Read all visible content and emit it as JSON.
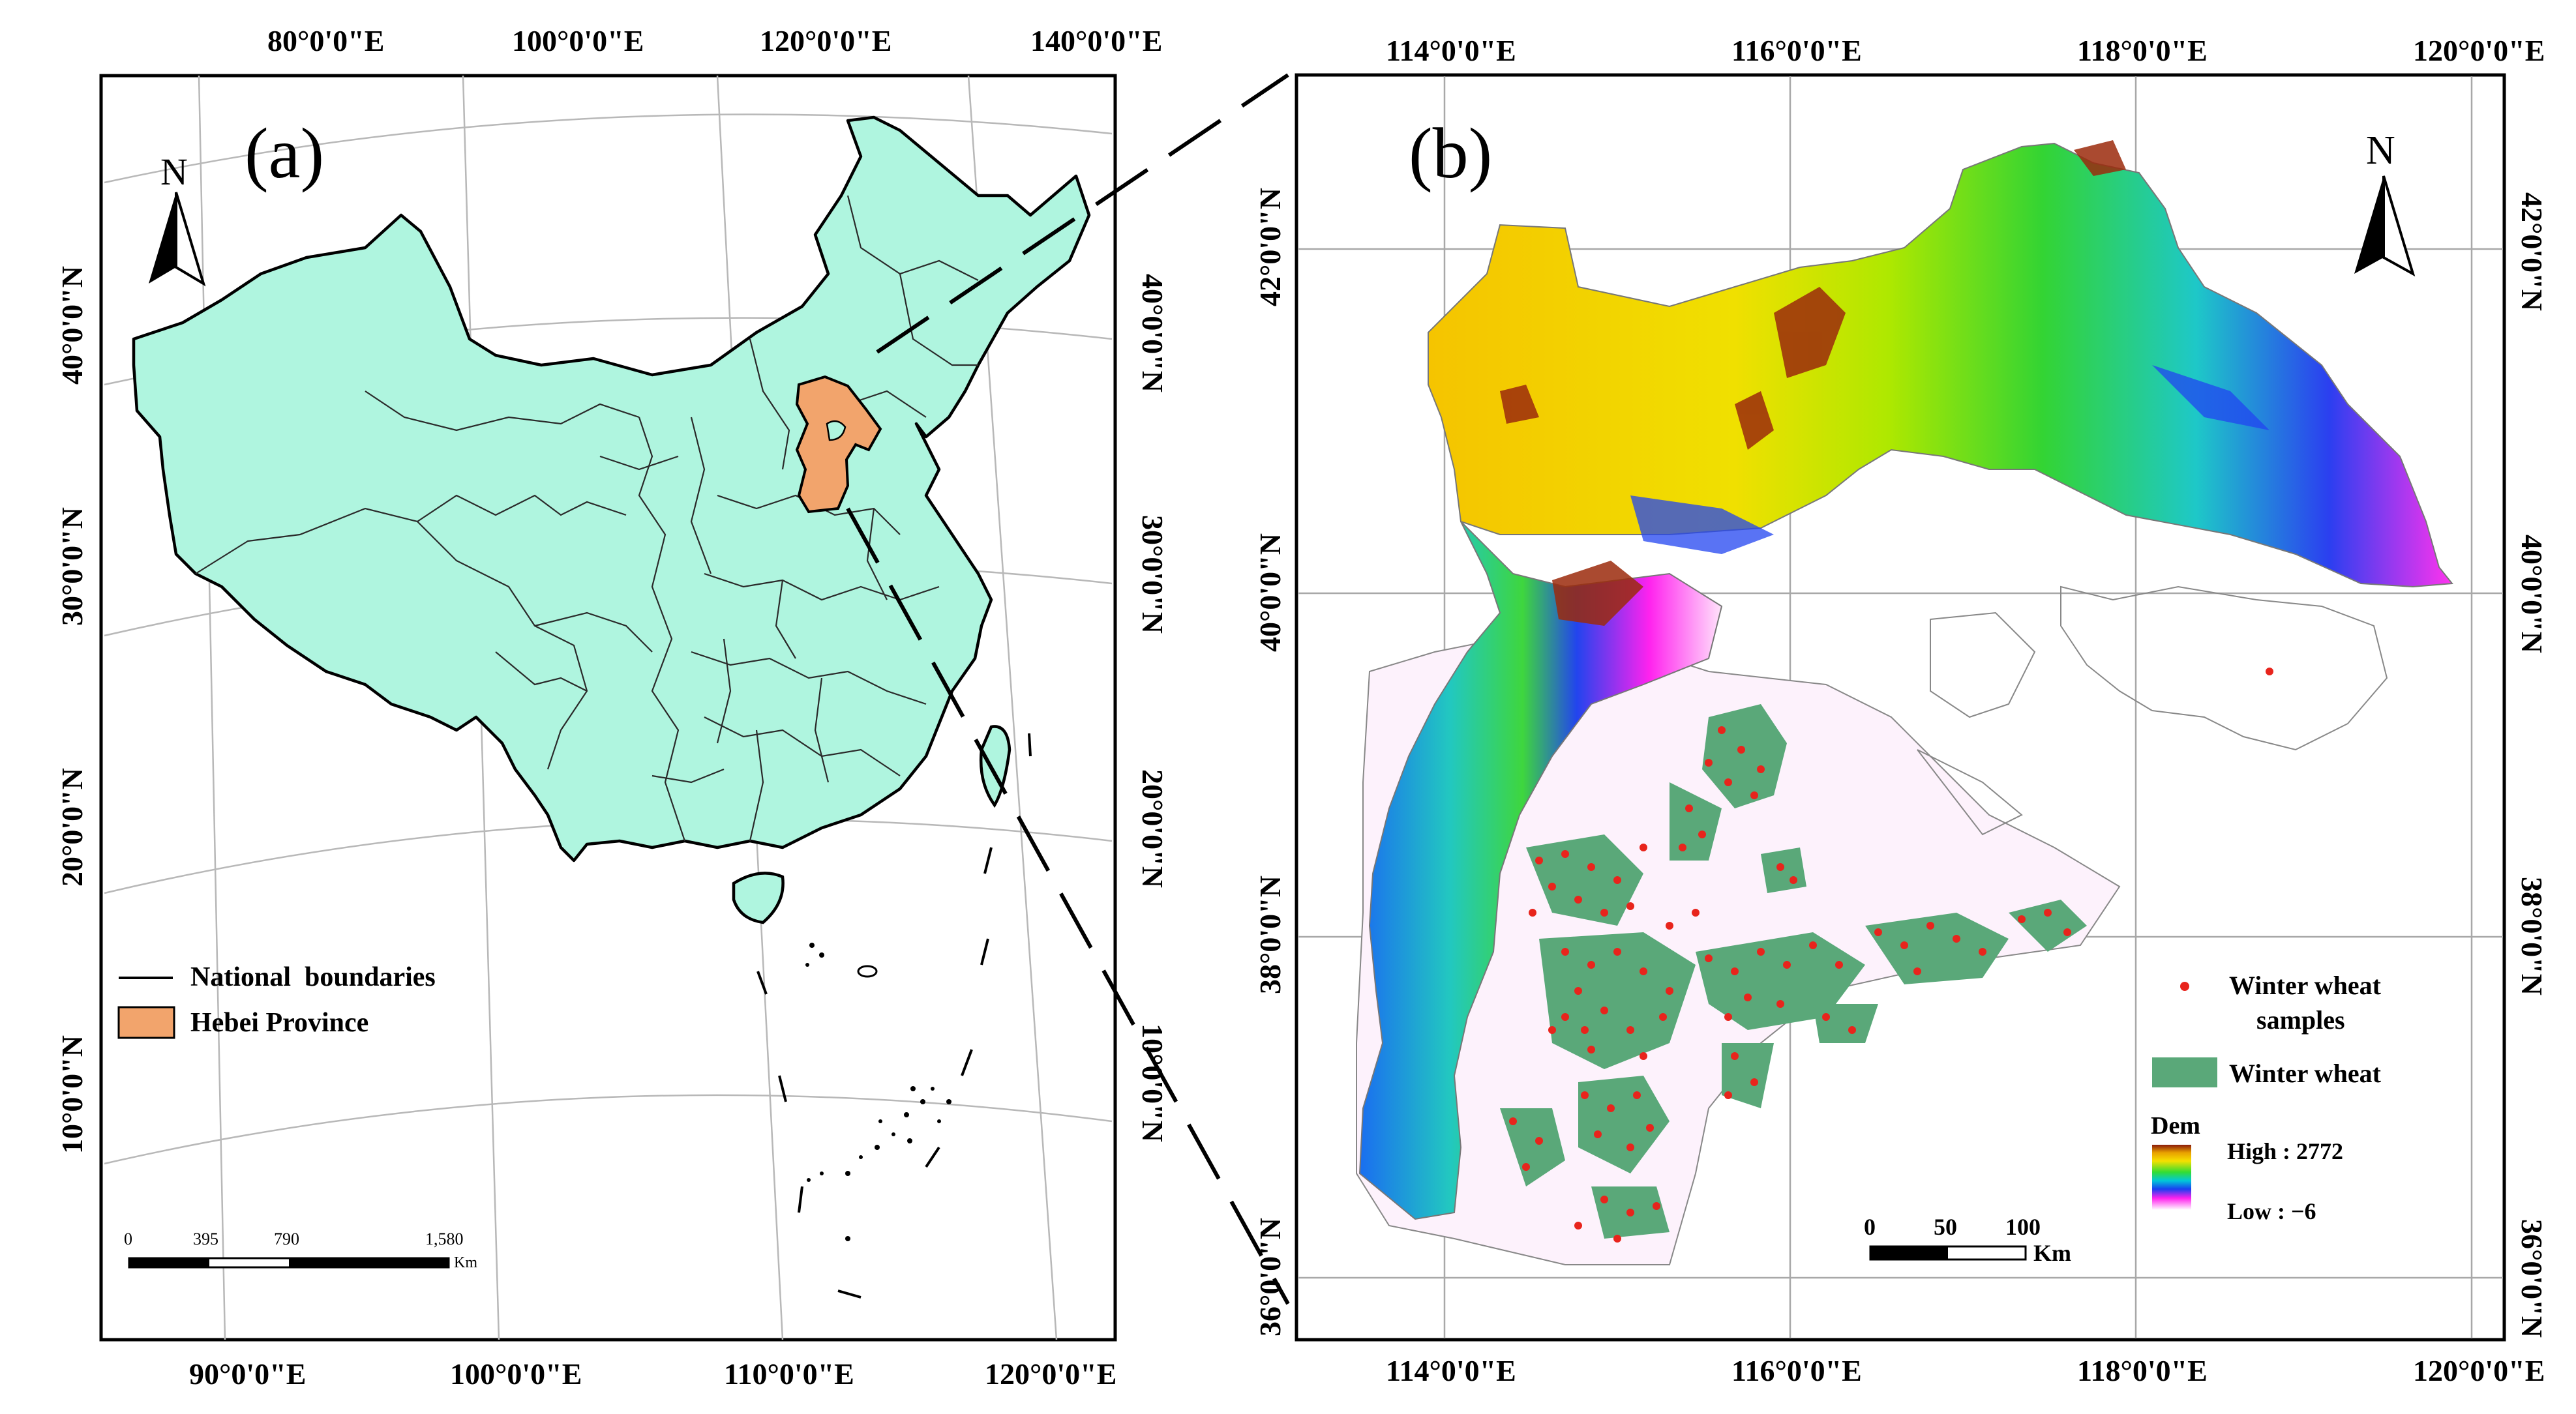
{
  "panel_a": {
    "label": "(a)",
    "north": "N",
    "top_lon": [
      "80°0'0\"E",
      "100°0'0\"E",
      "120°0'0\"E",
      "140°0'0\"E"
    ],
    "bottom_lon": [
      "90°0'0\"E",
      "100°0'0\"E",
      "110°0'0\"E",
      "120°0'0\"E"
    ],
    "left_lat": [
      "40°0'0\"N",
      "30°0'0\"N",
      "20°0'0\"N",
      "10°0'0\"N"
    ],
    "right_lat": [
      "40°0'0\"N",
      "30°0'0\"N",
      "20°0'0\"N",
      "10°0'0\"N"
    ],
    "legend": {
      "boundaries": "National  boundaries",
      "hebei": "Hebei Province"
    },
    "legend_colors": {
      "china_fill": "#aff5df",
      "hebei_fill": "#f2a46c"
    },
    "scale": {
      "ticks": [
        "0",
        "395",
        "790",
        "1,580"
      ],
      "unit": "Km"
    }
  },
  "panel_b": {
    "label": "(b)",
    "north": "N",
    "top_lon": [
      "114°0'0\"E",
      "116°0'0\"E",
      "118°0'0\"E",
      "120°0'0\"E"
    ],
    "bottom_lon": [
      "114°0'0\"E",
      "116°0'0\"E",
      "118°0'0\"E",
      "120°0'0\"E"
    ],
    "left_lat": [
      "42°0'0\"N",
      "40°0'0\"N",
      "38°0'0\"N",
      "36°0'0\"N"
    ],
    "right_lat": [
      "42°0'0\"N",
      "40°0'0\"N",
      "38°0'0\"N",
      "36°0'0\"N"
    ],
    "legend": {
      "samples_line1": "Winter wheat",
      "samples_line2": "samples",
      "wheat": "Winter wheat",
      "dem_title": "Dem",
      "dem_high": "High : 2772",
      "dem_low": "Low : −6"
    },
    "legend_colors": {
      "sample_dot": "#e8241c",
      "wheat_fill": "#5aa879"
    },
    "scale": {
      "ticks": [
        "0",
        "50",
        "100"
      ],
      "unit": "Km"
    }
  }
}
